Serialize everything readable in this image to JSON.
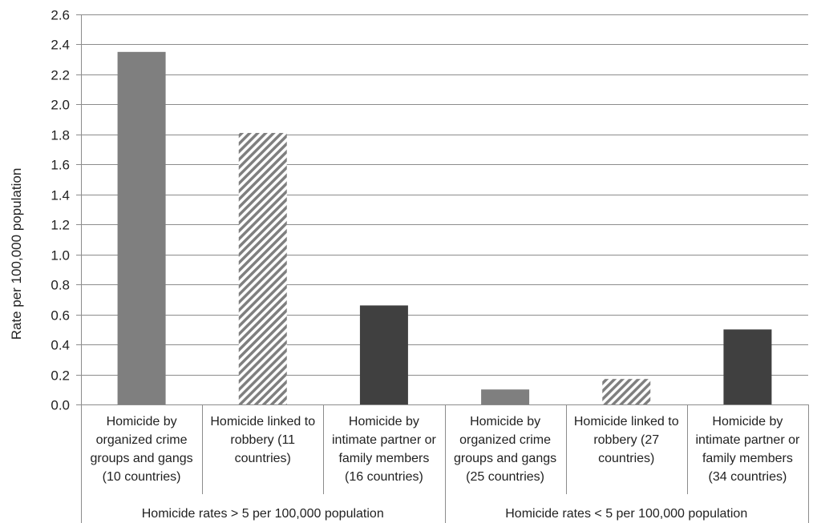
{
  "chart_data": {
    "type": "bar",
    "ylabel": "Rate per 100,000 population",
    "ylim": [
      0,
      2.6
    ],
    "ytick_step": 0.2,
    "yticks": [
      "0.0",
      "0.2",
      "0.4",
      "0.6",
      "0.8",
      "1.0",
      "1.2",
      "1.4",
      "1.6",
      "1.8",
      "2.0",
      "2.2",
      "2.4",
      "2.6"
    ],
    "grid": true,
    "groups": [
      {
        "label": "Homicide rates > 5 per 100,000 population",
        "categories": [
          {
            "lines": [
              "Homicide by",
              "organized crime",
              "groups and gangs",
              "(10 countries)"
            ],
            "value": 2.35,
            "style": "solid-gray"
          },
          {
            "lines": [
              "Homicide linked to",
              "robbery (11",
              "countries)"
            ],
            "value": 1.81,
            "style": "hatched"
          },
          {
            "lines": [
              "Homicide by",
              "intimate partner or",
              "family members",
              "(16 countries)"
            ],
            "value": 0.66,
            "style": "solid-dark"
          }
        ]
      },
      {
        "label": "Homicide rates < 5 per 100,000 population",
        "categories": [
          {
            "lines": [
              "Homicide by",
              "organized crime",
              "groups and gangs",
              "(25 countries)"
            ],
            "value": 0.1,
            "style": "solid-gray"
          },
          {
            "lines": [
              "Homicide linked to",
              "robbery (27",
              "countries)"
            ],
            "value": 0.17,
            "style": "hatched"
          },
          {
            "lines": [
              "Homicide by",
              "intimate partner or",
              "family members",
              "(34 countries)"
            ],
            "value": 0.5,
            "style": "solid-dark"
          }
        ]
      }
    ],
    "colors": {
      "solid-gray": "#7f7f7f",
      "hatched-stripe": "#7f7f7f",
      "hatched-bg": "#ffffff",
      "solid-dark": "#404040",
      "grid": "#8c8c8c",
      "axis": "#8c8c8c"
    }
  }
}
